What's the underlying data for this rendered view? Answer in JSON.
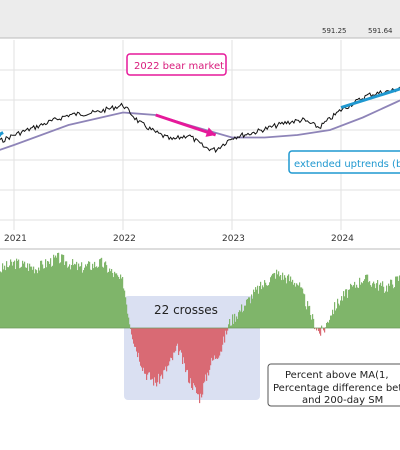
{
  "colors": {
    "price": "#111111",
    "moving_average": "#8e84b8",
    "uptrend_arrow": "#1f98d0",
    "bear_arrow": "#e6199a",
    "positive_fill": "#7fb56a",
    "negative_fill": "#d96a74",
    "crosses_box": "#cdd6ee",
    "gridline": "#e2e2e2"
  },
  "header": {
    "readout_1": "591.25",
    "readout_2": "591.64"
  },
  "annotations": {
    "bear_market": "2022 bear market",
    "uptrends": "extended uptrends (bl",
    "crosses": "22 crosses",
    "note_line_1": "Percent above MA(1,",
    "note_line_2": "Percentage difference bet",
    "note_line_3": "and 200-day SM"
  },
  "chart_data": [
    {
      "type": "line",
      "x_ticks": [
        "2021",
        "2022",
        "2023",
        "2024"
      ],
      "series": [
        {
          "role": "price",
          "x": [
            2020.6,
            2020.75,
            2020.9,
            2021.0,
            2021.25,
            2021.5,
            2021.75,
            2022.0,
            2022.15,
            2022.3,
            2022.45,
            2022.6,
            2022.75,
            2022.85,
            2023.0,
            2023.2,
            2023.5,
            2023.65,
            2023.8,
            2024.0,
            2024.25,
            2024.5,
            2024.75,
            2024.95
          ],
          "values": [
            -2,
            1,
            3,
            5,
            9,
            13,
            14,
            17,
            10,
            6,
            3,
            5,
            0,
            -1,
            4,
            6,
            10,
            11,
            8,
            15,
            21,
            23,
            30,
            33
          ]
        },
        {
          "role": "moving_average",
          "x": [
            2020.6,
            2021.0,
            2021.5,
            2022.0,
            2022.3,
            2022.6,
            2023.0,
            2023.3,
            2023.6,
            2023.9,
            2024.2,
            2024.5,
            2024.8,
            2024.95
          ],
          "values": [
            -5,
            1,
            9,
            14,
            13,
            9,
            4,
            4,
            5,
            7,
            12,
            18,
            24,
            29
          ]
        }
      ],
      "arrows": [
        {
          "role": "uptrend",
          "x": [
            2020.6,
            2020.9
          ],
          "values": [
            -1,
            6
          ]
        },
        {
          "role": "bear",
          "x": [
            2022.3,
            2022.85
          ],
          "values": [
            13,
            5
          ]
        },
        {
          "role": "uptrend",
          "x": [
            2024.0,
            2024.8
          ],
          "values": [
            16,
            27
          ]
        }
      ]
    },
    {
      "type": "area",
      "x": [
        2020.6,
        2020.8,
        2021.0,
        2021.2,
        2021.4,
        2021.6,
        2021.8,
        2022.0,
        2022.05,
        2022.1,
        2022.2,
        2022.3,
        2022.4,
        2022.5,
        2022.6,
        2022.7,
        2022.8,
        2022.9,
        2022.97,
        2023.05,
        2023.2,
        2023.4,
        2023.6,
        2023.75,
        2023.8,
        2023.85,
        2023.9,
        2024.0,
        2024.2,
        2024.4,
        2024.6,
        2024.8,
        2024.95
      ],
      "values": [
        6,
        11,
        13,
        12,
        14,
        12,
        13,
        9,
        2,
        -3,
        -9,
        -11,
        -8,
        -4,
        -10,
        -14,
        -7,
        -4,
        1,
        3,
        7,
        11,
        9,
        1,
        -1,
        0,
        3,
        6,
        10,
        8,
        11,
        9,
        7
      ],
      "crosses": 22
    }
  ]
}
